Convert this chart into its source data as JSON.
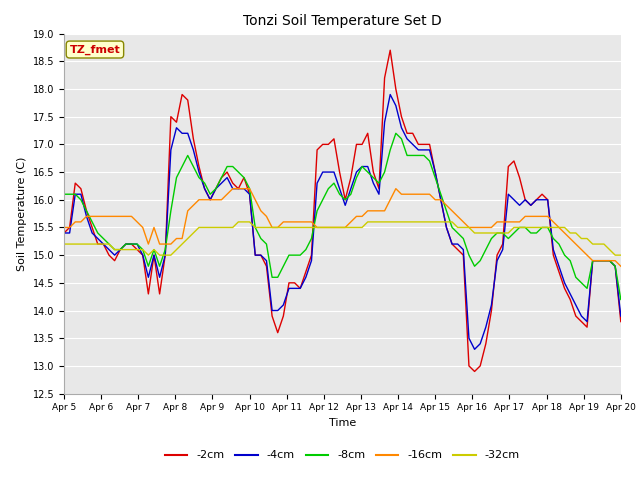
{
  "title": "Tonzi Soil Temperature Set D",
  "xlabel": "Time",
  "ylabel": "Soil Temperature (C)",
  "ylim": [
    12.5,
    19.0
  ],
  "yticks": [
    12.5,
    13.0,
    13.5,
    14.0,
    14.5,
    15.0,
    15.5,
    16.0,
    16.5,
    17.0,
    17.5,
    18.0,
    18.5,
    19.0
  ],
  "xtick_labels": [
    "Apr 5",
    "Apr 6",
    "Apr 7",
    "Apr 8",
    "Apr 9",
    "Apr 10",
    "Apr 11",
    "Apr 12",
    "Apr 13",
    "Apr 14",
    "Apr 15",
    "Apr 16",
    "Apr 17",
    "Apr 18",
    "Apr 19",
    "Apr 20"
  ],
  "colors": {
    "-2cm": "#dd0000",
    "-4cm": "#0000cc",
    "-8cm": "#00cc00",
    "-16cm": "#ff8800",
    "-32cm": "#cccc00"
  },
  "annotation_text": "TZ_fmet",
  "annotation_color": "#cc0000",
  "annotation_bg": "#ffffcc",
  "fig_facecolor": "#ffffff",
  "axes_facecolor": "#e8e8e8",
  "series": {
    "-2cm": [
      15.4,
      15.5,
      16.3,
      16.2,
      15.8,
      15.5,
      15.2,
      15.2,
      15.0,
      14.9,
      15.1,
      15.2,
      15.2,
      15.1,
      15.0,
      14.3,
      15.0,
      14.3,
      15.0,
      17.5,
      17.4,
      17.9,
      17.8,
      17.1,
      16.6,
      16.2,
      16.0,
      16.2,
      16.4,
      16.5,
      16.3,
      16.2,
      16.4,
      16.1,
      15.0,
      15.0,
      14.8,
      13.9,
      13.6,
      13.9,
      14.5,
      14.5,
      14.4,
      14.7,
      15.0,
      16.9,
      17.0,
      17.0,
      17.1,
      16.5,
      16.0,
      16.4,
      17.0,
      17.0,
      17.2,
      16.5,
      16.2,
      18.2,
      18.7,
      18.0,
      17.5,
      17.2,
      17.2,
      17.0,
      17.0,
      17.0,
      16.5,
      16.0,
      15.5,
      15.2,
      15.1,
      15.0,
      13.0,
      12.9,
      13.0,
      13.4,
      14.0,
      15.0,
      15.2,
      16.6,
      16.7,
      16.4,
      16.0,
      15.9,
      16.0,
      16.1,
      16.0,
      15.0,
      14.7,
      14.4,
      14.2,
      13.9,
      13.8,
      13.7,
      14.9,
      14.9,
      14.9,
      14.9,
      14.8,
      13.8
    ],
    "-4cm": [
      15.4,
      15.4,
      16.1,
      16.1,
      15.7,
      15.4,
      15.3,
      15.2,
      15.1,
      15.0,
      15.1,
      15.2,
      15.2,
      15.2,
      15.0,
      14.6,
      15.0,
      14.6,
      15.0,
      16.9,
      17.3,
      17.2,
      17.2,
      16.9,
      16.5,
      16.2,
      16.0,
      16.2,
      16.3,
      16.4,
      16.2,
      16.2,
      16.2,
      16.1,
      15.0,
      15.0,
      14.9,
      14.0,
      14.0,
      14.1,
      14.4,
      14.4,
      14.4,
      14.6,
      14.9,
      16.3,
      16.5,
      16.5,
      16.5,
      16.2,
      15.9,
      16.2,
      16.5,
      16.6,
      16.6,
      16.3,
      16.1,
      17.4,
      17.9,
      17.7,
      17.3,
      17.1,
      17.0,
      16.9,
      16.9,
      16.9,
      16.5,
      16.0,
      15.5,
      15.2,
      15.2,
      15.1,
      13.5,
      13.3,
      13.4,
      13.7,
      14.1,
      14.9,
      15.1,
      16.1,
      16.0,
      15.9,
      16.0,
      15.9,
      16.0,
      16.0,
      16.0,
      15.1,
      14.8,
      14.5,
      14.3,
      14.1,
      13.9,
      13.8,
      14.9,
      14.9,
      14.9,
      14.9,
      14.8,
      13.9
    ],
    "-8cm": [
      16.1,
      16.1,
      16.1,
      16.0,
      15.8,
      15.6,
      15.4,
      15.3,
      15.2,
      15.1,
      15.1,
      15.2,
      15.2,
      15.2,
      15.1,
      14.8,
      15.1,
      14.8,
      15.1,
      15.8,
      16.4,
      16.6,
      16.8,
      16.6,
      16.4,
      16.3,
      16.1,
      16.2,
      16.4,
      16.6,
      16.6,
      16.5,
      16.4,
      16.2,
      15.5,
      15.3,
      15.2,
      14.6,
      14.6,
      14.8,
      15.0,
      15.0,
      15.0,
      15.1,
      15.3,
      15.8,
      16.0,
      16.2,
      16.3,
      16.1,
      16.0,
      16.1,
      16.4,
      16.6,
      16.5,
      16.4,
      16.3,
      16.5,
      16.9,
      17.2,
      17.1,
      16.8,
      16.8,
      16.8,
      16.8,
      16.7,
      16.4,
      16.1,
      15.8,
      15.5,
      15.4,
      15.3,
      15.0,
      14.8,
      14.9,
      15.1,
      15.3,
      15.4,
      15.4,
      15.3,
      15.4,
      15.5,
      15.5,
      15.4,
      15.4,
      15.5,
      15.5,
      15.3,
      15.2,
      15.0,
      14.9,
      14.6,
      14.5,
      14.4,
      14.9,
      14.9,
      14.9,
      14.9,
      14.8,
      14.2
    ],
    "-16cm": [
      15.5,
      15.5,
      15.6,
      15.6,
      15.7,
      15.7,
      15.7,
      15.7,
      15.7,
      15.7,
      15.7,
      15.7,
      15.7,
      15.6,
      15.5,
      15.2,
      15.5,
      15.2,
      15.2,
      15.2,
      15.3,
      15.3,
      15.8,
      15.9,
      16.0,
      16.0,
      16.0,
      16.0,
      16.0,
      16.1,
      16.2,
      16.2,
      16.2,
      16.2,
      16.0,
      15.8,
      15.7,
      15.5,
      15.5,
      15.6,
      15.6,
      15.6,
      15.6,
      15.6,
      15.6,
      15.5,
      15.5,
      15.5,
      15.5,
      15.5,
      15.5,
      15.6,
      15.7,
      15.7,
      15.8,
      15.8,
      15.8,
      15.8,
      16.0,
      16.2,
      16.1,
      16.1,
      16.1,
      16.1,
      16.1,
      16.1,
      16.0,
      16.0,
      15.9,
      15.8,
      15.7,
      15.6,
      15.5,
      15.5,
      15.5,
      15.5,
      15.5,
      15.6,
      15.6,
      15.6,
      15.6,
      15.6,
      15.7,
      15.7,
      15.7,
      15.7,
      15.7,
      15.6,
      15.5,
      15.4,
      15.3,
      15.2,
      15.1,
      15.0,
      14.9,
      14.9,
      14.9,
      14.9,
      14.9,
      14.8
    ],
    "-32cm": [
      15.2,
      15.2,
      15.2,
      15.2,
      15.2,
      15.2,
      15.2,
      15.2,
      15.2,
      15.1,
      15.1,
      15.1,
      15.1,
      15.1,
      15.1,
      15.0,
      15.1,
      15.0,
      15.0,
      15.0,
      15.1,
      15.2,
      15.3,
      15.4,
      15.5,
      15.5,
      15.5,
      15.5,
      15.5,
      15.5,
      15.5,
      15.6,
      15.6,
      15.6,
      15.5,
      15.5,
      15.5,
      15.5,
      15.5,
      15.5,
      15.5,
      15.5,
      15.5,
      15.5,
      15.5,
      15.5,
      15.5,
      15.5,
      15.5,
      15.5,
      15.5,
      15.5,
      15.5,
      15.5,
      15.6,
      15.6,
      15.6,
      15.6,
      15.6,
      15.6,
      15.6,
      15.6,
      15.6,
      15.6,
      15.6,
      15.6,
      15.6,
      15.6,
      15.6,
      15.6,
      15.5,
      15.5,
      15.5,
      15.4,
      15.4,
      15.4,
      15.4,
      15.4,
      15.4,
      15.4,
      15.5,
      15.5,
      15.5,
      15.5,
      15.5,
      15.5,
      15.5,
      15.5,
      15.5,
      15.5,
      15.4,
      15.4,
      15.3,
      15.3,
      15.2,
      15.2,
      15.2,
      15.1,
      15.0,
      15.0
    ]
  }
}
